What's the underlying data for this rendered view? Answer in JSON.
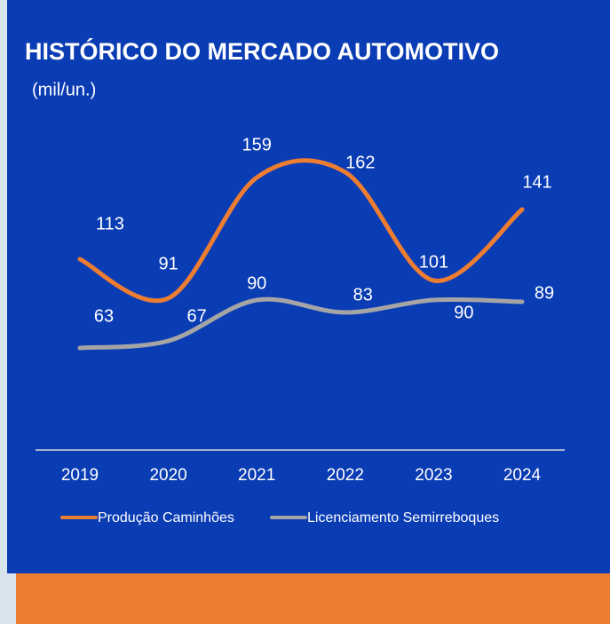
{
  "chart_data": {
    "type": "line",
    "title": "HISTÓRICO DO MERCADO AUTOMOTIVO",
    "subtitle": "(mil/un.)",
    "categories": [
      "2019",
      "2020",
      "2021",
      "2022",
      "2023",
      "2024"
    ],
    "series": [
      {
        "name": "Produção Caminhões",
        "color": "#ed7d31",
        "values": [
          113,
          91,
          159,
          162,
          101,
          141
        ]
      },
      {
        "name": "Licenciamento Semirreboques",
        "color": "#a5a5a5",
        "values": [
          63,
          67,
          90,
          83,
          90,
          89
        ]
      }
    ],
    "ylim": [
      0,
      170
    ],
    "legend": "bottom",
    "smooth": true
  }
}
